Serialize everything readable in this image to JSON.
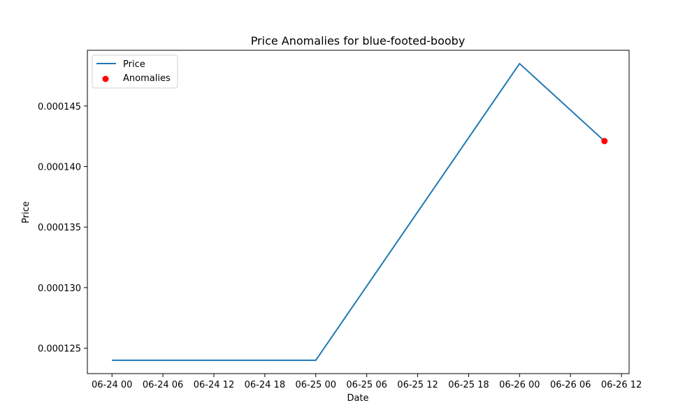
{
  "chart_data": {
    "type": "line",
    "title": "Price Anomalies for blue-footed-booby",
    "xlabel": "Date",
    "ylabel": "Price",
    "x_hours": [
      0,
      24,
      48,
      58
    ],
    "x_dates": [
      "2023-06-24 00:00",
      "2023-06-25 00:00",
      "2023-06-26 00:00",
      "2023-06-26 10:00"
    ],
    "series": [
      {
        "name": "Price",
        "color": "#1f77b4",
        "kind": "line",
        "x_hours": [
          0,
          24,
          48,
          58
        ],
        "values": [
          0.000124,
          0.000124,
          0.0001485,
          0.0001421
        ]
      },
      {
        "name": "Anomalies",
        "color": "#ff0000",
        "kind": "scatter",
        "x_hours": [
          58
        ],
        "values": [
          0.0001421
        ]
      }
    ],
    "xlim_hours": [
      -2.9,
      60.9
    ],
    "ylim": [
      0.0001229,
      0.0001496
    ],
    "x_ticks": [
      {
        "value": 0,
        "label": "06-24 00"
      },
      {
        "value": 6,
        "label": "06-24 06"
      },
      {
        "value": 12,
        "label": "06-24 12"
      },
      {
        "value": 18,
        "label": "06-24 18"
      },
      {
        "value": 24,
        "label": "06-25 00"
      },
      {
        "value": 30,
        "label": "06-25 06"
      },
      {
        "value": 36,
        "label": "06-25 12"
      },
      {
        "value": 42,
        "label": "06-25 18"
      },
      {
        "value": 48,
        "label": "06-26 00"
      },
      {
        "value": 54,
        "label": "06-26 06"
      },
      {
        "value": 60,
        "label": "06-26 12"
      }
    ],
    "y_ticks": [
      {
        "value": 0.000125,
        "label": "0.000125"
      },
      {
        "value": 0.00013,
        "label": "0.000130"
      },
      {
        "value": 0.000135,
        "label": "0.000135"
      },
      {
        "value": 0.00014,
        "label": "0.000140"
      },
      {
        "value": 0.000145,
        "label": "0.000145"
      }
    ],
    "grid": false,
    "legend": {
      "position": "upper-left",
      "entries": [
        {
          "label": "Price"
        },
        {
          "label": "Anomalies"
        }
      ]
    }
  }
}
